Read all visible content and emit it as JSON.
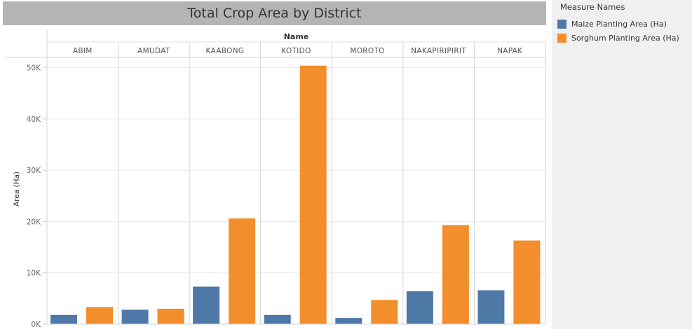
{
  "chart_data": {
    "type": "bar",
    "title": "Total Crop Area by District",
    "column_header": "Name",
    "ylabel": "Area (Ha)",
    "ylim": [
      0,
      52000
    ],
    "yticks": [
      0,
      10000,
      20000,
      30000,
      40000,
      50000
    ],
    "ytick_labels": [
      "0K",
      "10K",
      "20K",
      "30K",
      "40K",
      "50K"
    ],
    "grid": true,
    "categories": [
      "ABIM",
      "AMUDAT",
      "KAABONG",
      "KOTIDO",
      "MOROTO",
      "NAKAPIRIPIRIT",
      "NAPAK"
    ],
    "series": [
      {
        "name": "Maize Planting Area (Ha)",
        "color": "#4e79a7",
        "values": [
          1800,
          2800,
          7300,
          1800,
          1200,
          6400,
          6600
        ]
      },
      {
        "name": "Sorghum Planting Area (Ha)",
        "color": "#f28e2b",
        "values": [
          3300,
          3000,
          20600,
          50400,
          4700,
          19300,
          16300
        ]
      }
    ],
    "legend": {
      "title": "Measure Names",
      "placement": "right",
      "items": [
        "Maize Planting Area (Ha)",
        "Sorghum Planting Area (Ha)"
      ]
    }
  }
}
